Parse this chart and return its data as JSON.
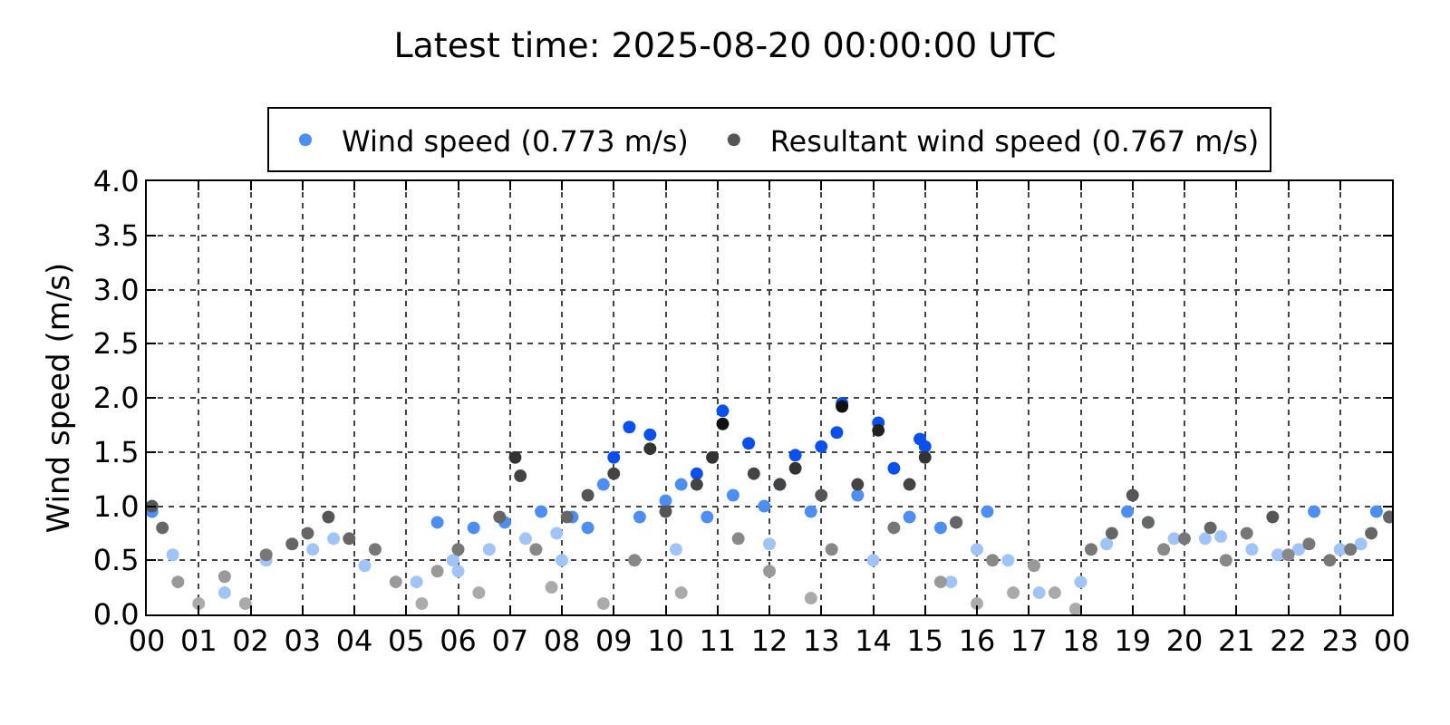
{
  "chart_data": {
    "type": "scatter",
    "title": "Latest time: 2025-08-20 00:00:00 UTC",
    "ylabel": "Wind speed (m/s)",
    "xlim": [
      0,
      24
    ],
    "xticks": [
      {
        "value": 0,
        "label": "00"
      },
      {
        "value": 1,
        "label": "01"
      },
      {
        "value": 2,
        "label": "02"
      },
      {
        "value": 3,
        "label": "03"
      },
      {
        "value": 4,
        "label": "04"
      },
      {
        "value": 5,
        "label": "05"
      },
      {
        "value": 6,
        "label": "06"
      },
      {
        "value": 7,
        "label": "07"
      },
      {
        "value": 8,
        "label": "08"
      },
      {
        "value": 9,
        "label": "09"
      },
      {
        "value": 10,
        "label": "10"
      },
      {
        "value": 11,
        "label": "11"
      },
      {
        "value": 12,
        "label": "12"
      },
      {
        "value": 13,
        "label": "13"
      },
      {
        "value": 14,
        "label": "14"
      },
      {
        "value": 15,
        "label": "15"
      },
      {
        "value": 16,
        "label": "16"
      },
      {
        "value": 17,
        "label": "17"
      },
      {
        "value": 18,
        "label": "18"
      },
      {
        "value": 19,
        "label": "19"
      },
      {
        "value": 20,
        "label": "20"
      },
      {
        "value": 21,
        "label": "21"
      },
      {
        "value": 22,
        "label": "22"
      },
      {
        "value": 23,
        "label": "23"
      },
      {
        "value": 24,
        "label": "00"
      }
    ],
    "ylim": [
      0,
      4
    ],
    "yticks": [
      {
        "value": 0,
        "label": "0.0"
      },
      {
        "value": 0.5,
        "label": "0.5"
      },
      {
        "value": 1,
        "label": "1.0"
      },
      {
        "value": 1.5,
        "label": "1.5"
      },
      {
        "value": 2,
        "label": "2.0"
      },
      {
        "value": 2.5,
        "label": "2.5"
      },
      {
        "value": 3,
        "label": "3.0"
      },
      {
        "value": 3.5,
        "label": "3.5"
      },
      {
        "value": 4,
        "label": "4.0"
      }
    ],
    "grid": true,
    "legend": "top",
    "marker": "circle",
    "series": [
      {
        "name": "Wind speed (0.773 m/s)",
        "x": [
          0.1,
          0.5,
          1.5,
          2.3,
          3.2,
          3.6,
          4.2,
          5.2,
          5.6,
          5.9,
          6.3,
          6.6,
          6.9,
          7.3,
          7.6,
          7.9,
          8.2,
          8.5,
          8.8,
          9.0,
          9.3,
          9.5,
          9.7,
          10.0,
          10.3,
          10.6,
          10.8,
          11.1,
          11.3,
          11.6,
          11.9,
          12.2,
          12.5,
          12.8,
          13.0,
          13.3,
          13.4,
          13.7,
          14.1,
          14.4,
          14.7,
          14.9,
          15.0,
          15.3,
          15.6,
          16.0,
          16.2,
          16.6,
          17.2,
          18.0,
          18.5,
          18.9,
          19.3,
          19.8,
          20.4,
          20.7,
          21.3,
          21.8,
          22.2,
          22.5,
          23.0,
          23.4,
          23.7,
          23.95,
          6.0,
          8.0,
          10.2,
          12.0,
          14.0,
          15.5
        ],
        "values": [
          0.95,
          0.55,
          0.2,
          0.5,
          0.6,
          0.7,
          0.45,
          0.3,
          0.85,
          0.5,
          0.8,
          0.6,
          0.85,
          0.7,
          0.95,
          0.75,
          0.9,
          0.8,
          1.2,
          1.45,
          1.73,
          0.9,
          1.66,
          1.05,
          1.2,
          1.3,
          0.9,
          1.88,
          1.1,
          1.58,
          1.0,
          1.2,
          1.47,
          0.95,
          1.55,
          1.68,
          1.95,
          1.1,
          1.77,
          1.35,
          0.9,
          1.62,
          1.55,
          0.8,
          0.85,
          0.6,
          0.95,
          0.5,
          0.2,
          0.3,
          0.65,
          0.95,
          0.85,
          0.7,
          0.7,
          0.72,
          0.6,
          0.55,
          0.6,
          0.95,
          0.6,
          0.65,
          0.95,
          0.9,
          0.4,
          0.5,
          0.6,
          0.65,
          0.5,
          0.3
        ],
        "colors": [
          "#4d8ef5",
          "#a0c4f8",
          "#a0c4f8",
          "#a0c4f8",
          "#a0c4f8",
          "#a0c4f8",
          "#a0c4f8",
          "#a0c4f8",
          "#4d8ef5",
          "#a0c4f8",
          "#4d8ef5",
          "#a0c4f8",
          "#4d8ef5",
          "#a0c4f8",
          "#4d8ef5",
          "#a0c4f8",
          "#4d8ef5",
          "#4d8ef5",
          "#4d8ef5",
          "#0a50f0",
          "#0a50f0",
          "#4d8ef5",
          "#0a50f0",
          "#4d8ef5",
          "#4d8ef5",
          "#0a50f0",
          "#4d8ef5",
          "#0a50f0",
          "#4d8ef5",
          "#0a50f0",
          "#4d8ef5",
          "#4d8ef5",
          "#0a50f0",
          "#4d8ef5",
          "#0a50f0",
          "#0a50f0",
          "#0a50f0",
          "#4d8ef5",
          "#0a50f0",
          "#0a50f0",
          "#4d8ef5",
          "#0a50f0",
          "#0a50f0",
          "#4d8ef5",
          "#4d8ef5",
          "#a0c4f8",
          "#4d8ef5",
          "#a0c4f8",
          "#a0c4f8",
          "#a0c4f8",
          "#a0c4f8",
          "#4d8ef5",
          "#4d8ef5",
          "#a0c4f8",
          "#a0c4f8",
          "#a0c4f8",
          "#a0c4f8",
          "#a0c4f8",
          "#a0c4f8",
          "#4d8ef5",
          "#a0c4f8",
          "#a0c4f8",
          "#4d8ef5",
          "#4d8ef5",
          "#a0c4f8",
          "#a0c4f8",
          "#a0c4f8",
          "#a0c4f8",
          "#a0c4f8",
          "#a0c4f8"
        ]
      },
      {
        "name": "Resultant wind speed (0.767 m/s)",
        "x": [
          0.1,
          0.3,
          0.6,
          1.0,
          1.5,
          1.9,
          2.3,
          2.8,
          3.1,
          3.5,
          3.9,
          4.4,
          4.8,
          5.3,
          5.6,
          6.0,
          6.4,
          6.8,
          7.1,
          7.2,
          7.5,
          7.8,
          8.1,
          8.5,
          8.8,
          9.0,
          9.4,
          9.7,
          10.0,
          10.3,
          10.6,
          10.9,
          11.1,
          11.4,
          11.7,
          12.0,
          12.2,
          12.5,
          12.8,
          13.0,
          13.2,
          13.4,
          13.7,
          14.1,
          14.4,
          14.7,
          15.0,
          15.3,
          15.6,
          16.0,
          16.3,
          16.7,
          17.1,
          17.5,
          17.9,
          18.2,
          18.6,
          19.0,
          19.3,
          19.6,
          20.0,
          20.5,
          20.8,
          21.2,
          21.7,
          22.0,
          22.4,
          22.8,
          23.2,
          23.6,
          23.95
        ],
        "values": [
          1.0,
          0.8,
          0.3,
          0.1,
          0.35,
          0.1,
          0.55,
          0.65,
          0.75,
          0.9,
          0.7,
          0.6,
          0.3,
          0.1,
          0.4,
          0.6,
          0.2,
          0.9,
          1.45,
          1.28,
          0.6,
          0.25,
          0.9,
          1.1,
          0.1,
          1.3,
          0.5,
          1.53,
          0.95,
          0.2,
          1.2,
          1.45,
          1.76,
          0.7,
          1.3,
          0.4,
          1.2,
          1.35,
          0.15,
          1.1,
          0.6,
          1.92,
          1.2,
          1.7,
          0.8,
          1.2,
          1.45,
          0.3,
          0.85,
          0.1,
          0.5,
          0.2,
          0.45,
          0.2,
          0.05,
          0.6,
          0.75,
          1.1,
          0.85,
          0.6,
          0.7,
          0.8,
          0.5,
          0.75,
          0.9,
          0.55,
          0.65,
          0.5,
          0.6,
          0.75,
          0.9
        ],
        "colors": [
          "#555555",
          "#666666",
          "#999999",
          "#aaaaaa",
          "#999999",
          "#aaaaaa",
          "#777777",
          "#666666",
          "#666666",
          "#555555",
          "#666666",
          "#777777",
          "#999999",
          "#aaaaaa",
          "#999999",
          "#777777",
          "#aaaaaa",
          "#666666",
          "#333333",
          "#444444",
          "#888888",
          "#aaaaaa",
          "#666666",
          "#555555",
          "#aaaaaa",
          "#444444",
          "#888888",
          "#333333",
          "#555555",
          "#aaaaaa",
          "#444444",
          "#333333",
          "#111111",
          "#888888",
          "#444444",
          "#999999",
          "#444444",
          "#333333",
          "#aaaaaa",
          "#555555",
          "#888888",
          "#111111",
          "#444444",
          "#222222",
          "#777777",
          "#444444",
          "#333333",
          "#999999",
          "#666666",
          "#aaaaaa",
          "#888888",
          "#aaaaaa",
          "#999999",
          "#aaaaaa",
          "#aaaaaa",
          "#777777",
          "#666666",
          "#555555",
          "#666666",
          "#888888",
          "#777777",
          "#666666",
          "#888888",
          "#777777",
          "#555555",
          "#888888",
          "#777777",
          "#777777",
          "#777777",
          "#666666",
          "#666666"
        ]
      }
    ]
  }
}
